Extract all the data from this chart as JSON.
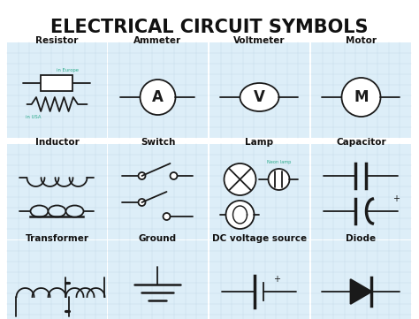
{
  "title": "ELECTRICAL CIRCUIT SYMBOLS",
  "title_fontsize": 15,
  "title_weight": "bold",
  "background_color": "#ffffff",
  "grid_color": "#c5dcea",
  "cell_bg": "#ddeef8",
  "line_color": "#1a1a1a",
  "label_fontsize": 7.5,
  "label_weight": "bold",
  "teal_color": "#2aaa8a",
  "symbols": [
    {
      "name": "Resistor",
      "row": 0,
      "col": 0
    },
    {
      "name": "Ammeter",
      "row": 0,
      "col": 1
    },
    {
      "name": "Voltmeter",
      "row": 0,
      "col": 2
    },
    {
      "name": "Motor",
      "row": 0,
      "col": 3
    },
    {
      "name": "Inductor",
      "row": 1,
      "col": 0
    },
    {
      "name": "Switch",
      "row": 1,
      "col": 1
    },
    {
      "name": "Lamp",
      "row": 1,
      "col": 2
    },
    {
      "name": "Capacitor",
      "row": 1,
      "col": 3
    },
    {
      "name": "Transformer",
      "row": 2,
      "col": 0
    },
    {
      "name": "Ground",
      "row": 2,
      "col": 1
    },
    {
      "name": "DC voltage source",
      "row": 2,
      "col": 2
    },
    {
      "name": "Diode",
      "row": 2,
      "col": 3
    }
  ],
  "figsize": [
    4.74,
    3.61
  ],
  "dpi": 100
}
